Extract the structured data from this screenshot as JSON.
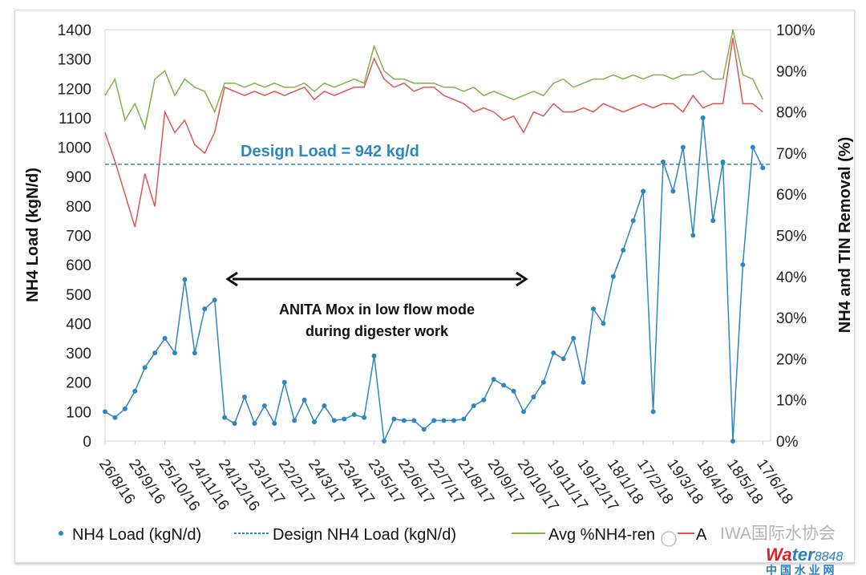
{
  "chart_data": {
    "type": "line",
    "title": "",
    "y_left": {
      "label": "NH4 Load (kgN/d)",
      "range": [
        0,
        1400
      ],
      "ticks": [
        "0",
        "100",
        "200",
        "300",
        "400",
        "500",
        "600",
        "700",
        "800",
        "900",
        "1000",
        "1100",
        "1200",
        "1300",
        "1400"
      ]
    },
    "y_right": {
      "label": "NH4 and TIN Removal (%)",
      "range": [
        0,
        100
      ],
      "ticks": [
        "0%",
        "10%",
        "20%",
        "30%",
        "40%",
        "50%",
        "60%",
        "70%",
        "80%",
        "90%",
        "100%"
      ]
    },
    "x_ticks": [
      "26/8/16",
      "25/9/16",
      "25/10/16",
      "24/11/16",
      "24/12/16",
      "23/1/17",
      "22/2/17",
      "24/3/17",
      "23/4/17",
      "23/5/17",
      "22/6/17",
      "22/7/17",
      "21/8/17",
      "20/9/17",
      "20/10/17",
      "19/11/17",
      "19/12/17",
      "18/1/18",
      "17/2/18",
      "19/3/18",
      "18/4/18",
      "18/5/18",
      "17/6/18"
    ],
    "x_tick_dates": [
      "2016-08-26",
      "2016-09-25",
      "2016-10-25",
      "2016-11-24",
      "2016-12-24",
      "2017-01-23",
      "2017-02-22",
      "2017-03-24",
      "2017-04-23",
      "2017-05-23",
      "2017-06-22",
      "2017-07-22",
      "2017-08-21",
      "2017-09-20",
      "2017-10-20",
      "2017-11-19",
      "2017-12-19",
      "2018-01-18",
      "2018-02-17",
      "2018-03-19",
      "2018-04-18",
      "2018-05-18",
      "2018-06-17"
    ],
    "x_range": [
      "2016-08-26",
      "2018-06-20"
    ],
    "x": [
      "2016-08-26",
      "2016-09-05",
      "2016-09-15",
      "2016-09-25",
      "2016-10-05",
      "2016-10-15",
      "2016-10-25",
      "2016-11-04",
      "2016-11-14",
      "2016-11-24",
      "2016-12-04",
      "2016-12-14",
      "2016-12-24",
      "2017-01-03",
      "2017-01-13",
      "2017-01-23",
      "2017-02-02",
      "2017-02-12",
      "2017-02-22",
      "2017-03-04",
      "2017-03-14",
      "2017-03-24",
      "2017-04-03",
      "2017-04-13",
      "2017-04-23",
      "2017-05-03",
      "2017-05-13",
      "2017-05-23",
      "2017-06-02",
      "2017-06-12",
      "2017-06-22",
      "2017-07-02",
      "2017-07-12",
      "2017-07-22",
      "2017-08-01",
      "2017-08-11",
      "2017-08-21",
      "2017-08-31",
      "2017-09-10",
      "2017-09-20",
      "2017-09-30",
      "2017-10-10",
      "2017-10-20",
      "2017-10-30",
      "2017-11-09",
      "2017-11-19",
      "2017-11-29",
      "2017-12-09",
      "2017-12-19",
      "2017-12-29",
      "2018-01-08",
      "2018-01-18",
      "2018-01-28",
      "2018-02-07",
      "2018-02-17",
      "2018-02-27",
      "2018-03-09",
      "2018-03-19",
      "2018-03-29",
      "2018-04-08",
      "2018-04-18",
      "2018-04-28",
      "2018-05-08",
      "2018-05-18",
      "2018-05-28",
      "2018-06-07",
      "2018-06-17"
    ],
    "series": [
      {
        "name": "NH4 Load (kgN/d)",
        "axis": "left",
        "style": "line-markers",
        "color": "#2e86c1",
        "values": [
          100,
          80,
          110,
          170,
          250,
          300,
          350,
          300,
          550,
          300,
          450,
          480,
          80,
          60,
          150,
          60,
          120,
          60,
          200,
          70,
          140,
          65,
          120,
          70,
          75,
          90,
          80,
          290,
          0,
          75,
          70,
          70,
          40,
          70,
          70,
          70,
          75,
          120,
          140,
          210,
          190,
          170,
          100,
          150,
          200,
          300,
          280,
          350,
          200,
          450,
          400,
          560,
          650,
          750,
          850,
          100,
          950,
          850,
          1000,
          700,
          1100,
          750,
          950,
          0,
          600,
          1000,
          930
        ]
      },
      {
        "name": "Design NH4 Load (kgN/d)",
        "axis": "left",
        "style": "dashed",
        "color": "#2e86c1",
        "constant": 942
      },
      {
        "name": "Avg %NH4-ren",
        "axis": "right",
        "style": "line",
        "color": "#7fb24a",
        "values": [
          84,
          88,
          78,
          82,
          76,
          88,
          90,
          84,
          88,
          86,
          85,
          80,
          87,
          87,
          86,
          87,
          86,
          87,
          86,
          86,
          87,
          85,
          87,
          86,
          87,
          88,
          87,
          96,
          90,
          88,
          88,
          87,
          87,
          87,
          86,
          86,
          85,
          86,
          84,
          85,
          84,
          83,
          84,
          85,
          84,
          87,
          88,
          86,
          87,
          88,
          88,
          89,
          88,
          89,
          88,
          89,
          89,
          88,
          89,
          89,
          90,
          88,
          88,
          100,
          89,
          88,
          83
        ]
      },
      {
        "name": "A",
        "axis": "right",
        "style": "line",
        "color": "#e05555",
        "values": [
          75,
          68,
          60,
          52,
          65,
          57,
          80,
          75,
          78,
          72,
          70,
          75,
          86,
          85,
          84,
          85,
          84,
          85,
          84,
          85,
          86,
          83,
          85,
          84,
          85,
          86,
          86,
          93,
          88,
          86,
          87,
          85,
          86,
          86,
          84,
          83,
          82,
          80,
          81,
          80,
          78,
          79,
          75,
          80,
          79,
          82,
          80,
          80,
          81,
          80,
          82,
          81,
          80,
          81,
          82,
          81,
          82,
          82,
          80,
          84,
          81,
          82,
          82,
          98,
          82,
          82,
          80
        ]
      }
    ],
    "annotations": {
      "design_load": "Design Load = 942 kg/d",
      "arrow_line1": "ANITA Mox in low flow mode",
      "arrow_line2": "during digester work",
      "arrow_range": [
        "2016-12-24",
        "2017-10-20"
      ]
    },
    "legend_position": "bottom",
    "grid": false
  },
  "watermark": {
    "text": "IWA国际水协会",
    "site": "water8848.com",
    "site_cn": "中 国 水 业 网"
  }
}
